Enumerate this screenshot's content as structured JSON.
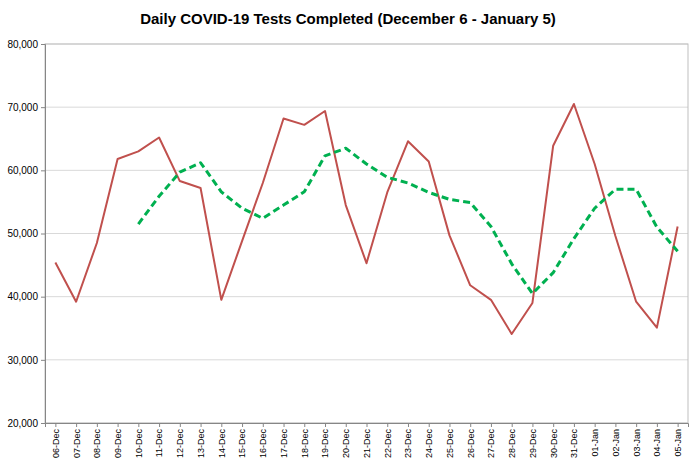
{
  "chart_data": {
    "type": "line",
    "title": "Daily COVID-19 Tests Completed (December 6 - January 5)",
    "categories": [
      "06-Dec",
      "07-Dec",
      "08-Dec",
      "09-Dec",
      "10-Dec",
      "11-Dec",
      "12-Dec",
      "13-Dec",
      "14-Dec",
      "15-Dec",
      "16-Dec",
      "17-Dec",
      "18-Dec",
      "19-Dec",
      "20-Dec",
      "21-Dec",
      "22-Dec",
      "23-Dec",
      "24-Dec",
      "25-Dec",
      "26-Dec",
      "27-Dec",
      "28-Dec",
      "29-Dec",
      "30-Dec",
      "31-Dec",
      "01-Jan",
      "02-Jan",
      "03-Jan",
      "04-Jan",
      "05-Jan"
    ],
    "series": [
      {
        "color": "#c0504d",
        "line_style": "solid",
        "values": [
          45400,
          39200,
          48500,
          61800,
          63000,
          65200,
          58300,
          57200,
          39500,
          48800,
          58000,
          68200,
          67200,
          69400,
          54500,
          45300,
          56500,
          64600,
          61400,
          49700,
          41800,
          39500,
          34100,
          39000,
          63900,
          70500,
          61000,
          49600,
          39200,
          35100,
          51100
        ]
      },
      {
        "color": "#00b050",
        "line_style": "dashed",
        "values": [
          null,
          null,
          null,
          null,
          51500,
          55900,
          59700,
          61200,
          56600,
          54000,
          52400,
          54500,
          56600,
          62300,
          63500,
          61000,
          58900,
          58000,
          56500,
          55400,
          54900,
          51100,
          45200,
          40500,
          43800,
          49200,
          54000,
          57000,
          57000,
          51000,
          47200
        ]
      }
    ],
    "ylim": [
      20000,
      80000
    ],
    "yticks": [
      {
        "value": 20000,
        "label": "20,000"
      },
      {
        "value": 30000,
        "label": "30,000"
      },
      {
        "value": 40000,
        "label": "40,000"
      },
      {
        "value": 50000,
        "label": "50,000"
      },
      {
        "value": 60000,
        "label": "60,000"
      },
      {
        "value": 70000,
        "label": "70,000"
      },
      {
        "value": 80000,
        "label": "80,000"
      }
    ],
    "grid": true
  }
}
